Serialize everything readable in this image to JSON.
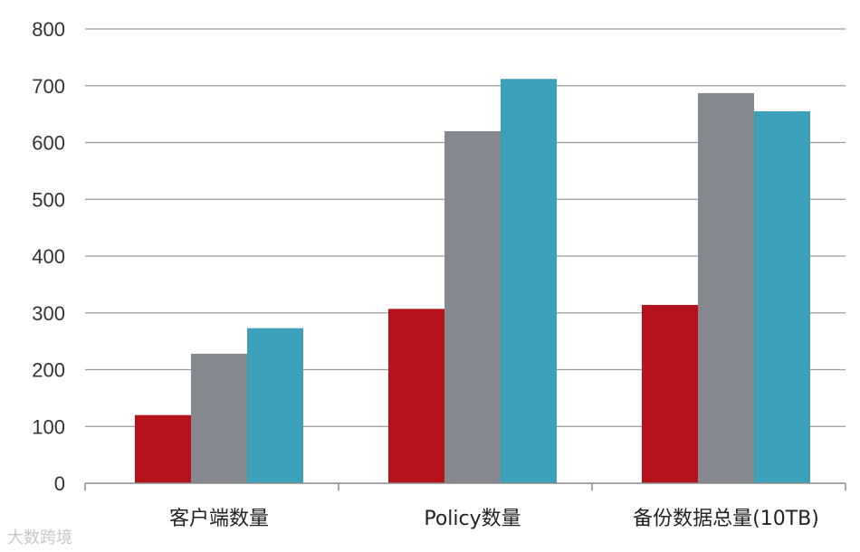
{
  "chart_data": {
    "type": "bar",
    "categories": [
      "客户端数量",
      "Policy数量",
      "备份数据总量(10TB)"
    ],
    "series": [
      {
        "values": [
          120,
          307,
          314
        ],
        "color": "#b5121b"
      },
      {
        "values": [
          228,
          620,
          687
        ],
        "color": "#868890"
      },
      {
        "values": [
          273,
          712,
          655
        ],
        "color": "#3ba0ba"
      }
    ],
    "ylim": [
      0,
      800
    ],
    "yticks": [
      0,
      100,
      200,
      300,
      400,
      500,
      600,
      700,
      800
    ],
    "grid": true,
    "title": "",
    "xlabel": "",
    "ylabel": ""
  },
  "watermark": "大数跨境"
}
